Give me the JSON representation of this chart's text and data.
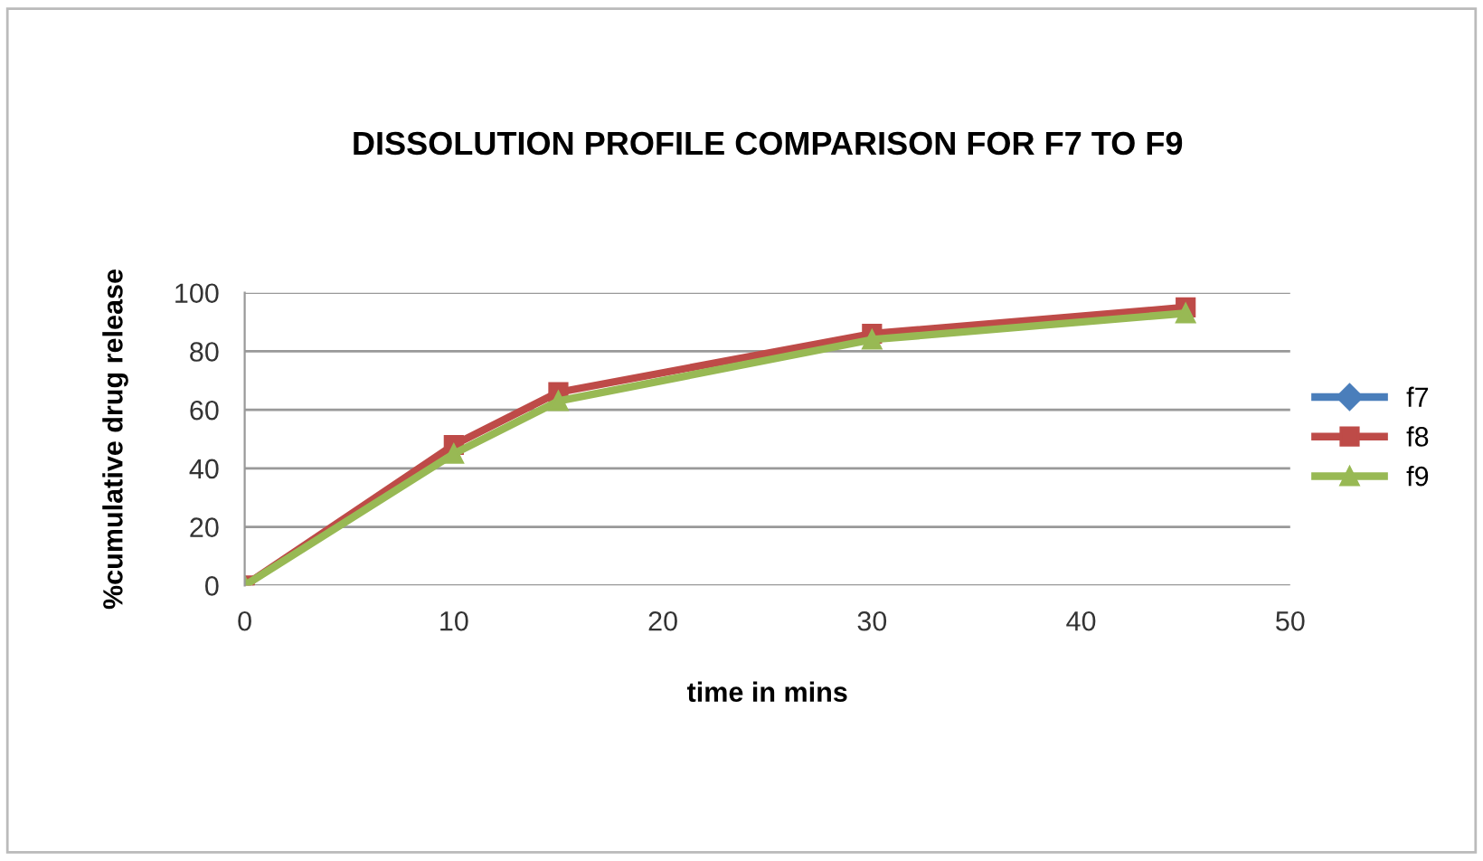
{
  "chart_data": {
    "type": "line",
    "title": "DISSOLUTION PROFILE COMPARISON FOR F7 TO F9",
    "xlabel": "time in mins",
    "ylabel": "%cumulative drug release",
    "x": [
      0,
      10,
      15,
      30,
      45
    ],
    "series": [
      {
        "name": "f7",
        "color": "#4a7ebb",
        "marker": "diamond",
        "values": [
          null,
          null,
          null,
          null,
          null
        ]
      },
      {
        "name": "f8",
        "color": "#be4b48",
        "marker": "square",
        "values": [
          0,
          48,
          66,
          86,
          95
        ]
      },
      {
        "name": "f9",
        "color": "#98b954",
        "marker": "triangle",
        "values": [
          0,
          45,
          63,
          84,
          93
        ]
      }
    ],
    "xlim": [
      0,
      50
    ],
    "xticks": [
      0,
      10,
      20,
      30,
      40,
      50
    ],
    "ylim": [
      0,
      100
    ],
    "yticks": [
      0,
      20,
      40,
      60,
      80,
      100
    ],
    "grid": "y",
    "legend": "right",
    "line_style": "solid"
  }
}
